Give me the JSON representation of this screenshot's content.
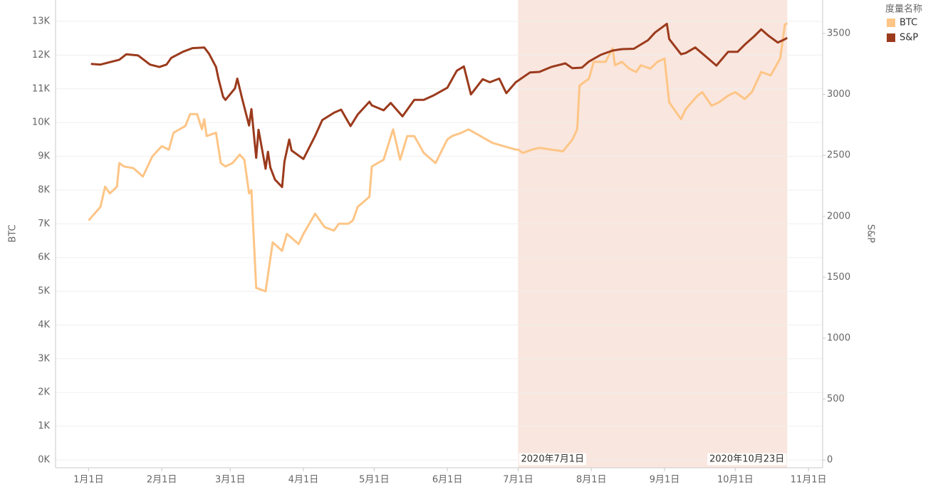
{
  "chart_data": {
    "type": "line",
    "legend_title": "度量名称",
    "legend_position": "right",
    "y_label": "BTC",
    "y2_label": "S&P",
    "grid": true,
    "xlim": [
      "2019-12-18",
      "2020-11-07"
    ],
    "xticks": [
      {
        "value": "2020-01-01",
        "label": "1月1日"
      },
      {
        "value": "2020-02-01",
        "label": "2月1日"
      },
      {
        "value": "2020-03-01",
        "label": "3月1日"
      },
      {
        "value": "2020-04-01",
        "label": "4月1日"
      },
      {
        "value": "2020-05-01",
        "label": "5月1日"
      },
      {
        "value": "2020-06-01",
        "label": "6月1日"
      },
      {
        "value": "2020-07-01",
        "label": "7月1日"
      },
      {
        "value": "2020-08-01",
        "label": "8月1日"
      },
      {
        "value": "2020-09-01",
        "label": "9月1日"
      },
      {
        "value": "2020-10-01",
        "label": "10月1日"
      },
      {
        "value": "2020-11-01",
        "label": "11月1日"
      }
    ],
    "ylim": [
      -232,
      13634
    ],
    "yticks": [
      {
        "value": 0,
        "label": "0K"
      },
      {
        "value": 1000,
        "label": "1K"
      },
      {
        "value": 2000,
        "label": "2K"
      },
      {
        "value": 3000,
        "label": "3K"
      },
      {
        "value": 4000,
        "label": "4K"
      },
      {
        "value": 5000,
        "label": "5K"
      },
      {
        "value": 6000,
        "label": "6K"
      },
      {
        "value": 7000,
        "label": "7K"
      },
      {
        "value": 8000,
        "label": "8K"
      },
      {
        "value": 9000,
        "label": "9K"
      },
      {
        "value": 10000,
        "label": "10K"
      },
      {
        "value": 11000,
        "label": "11K"
      },
      {
        "value": 12000,
        "label": "12K"
      },
      {
        "value": 13000,
        "label": "13K"
      }
    ],
    "y2lim": [
      -64,
      3775
    ],
    "y2ticks": [
      0,
      500,
      1000,
      1500,
      2000,
      2500,
      3000,
      3500
    ],
    "highlight": {
      "start": "2020-07-01",
      "end": "2020-10-23",
      "color": "#f9e6de",
      "start_label": "2020年7月1日",
      "end_label": "2020年10月23日"
    },
    "series": [
      {
        "name": "BTC",
        "color": "#fdc586",
        "axis": "y",
        "x": [
          "2020-01-01",
          "2020-01-06",
          "2020-01-08",
          "2020-01-10",
          "2020-01-13",
          "2020-01-14",
          "2020-01-16",
          "2020-01-20",
          "2020-01-24",
          "2020-01-28",
          "2020-02-01",
          "2020-02-04",
          "2020-02-06",
          "2020-02-11",
          "2020-02-13",
          "2020-02-16",
          "2020-02-18",
          "2020-02-19",
          "2020-02-20",
          "2020-02-24",
          "2020-02-26",
          "2020-02-28",
          "2020-03-02",
          "2020-03-05",
          "2020-03-07",
          "2020-03-09",
          "2020-03-10",
          "2020-03-12",
          "2020-03-16",
          "2020-03-19",
          "2020-03-23",
          "2020-03-25",
          "2020-03-30",
          "2020-04-01",
          "2020-04-06",
          "2020-04-10",
          "2020-04-14",
          "2020-04-16",
          "2020-04-20",
          "2020-04-22",
          "2020-04-24",
          "2020-04-29",
          "2020-04-30",
          "2020-05-05",
          "2020-05-09",
          "2020-05-12",
          "2020-05-15",
          "2020-05-18",
          "2020-05-22",
          "2020-05-27",
          "2020-06-01",
          "2020-06-03",
          "2020-06-07",
          "2020-06-10",
          "2020-06-15",
          "2020-06-20",
          "2020-06-25",
          "2020-06-30",
          "2020-07-01",
          "2020-07-03",
          "2020-07-07",
          "2020-07-10",
          "2020-07-15",
          "2020-07-20",
          "2020-07-24",
          "2020-07-26",
          "2020-07-27",
          "2020-07-31",
          "2020-08-02",
          "2020-08-07",
          "2020-08-10",
          "2020-08-11",
          "2020-08-14",
          "2020-08-17",
          "2020-08-20",
          "2020-08-22",
          "2020-08-26",
          "2020-08-29",
          "2020-09-01",
          "2020-09-03",
          "2020-09-08",
          "2020-09-10",
          "2020-09-15",
          "2020-09-17",
          "2020-09-21",
          "2020-09-24",
          "2020-09-28",
          "2020-10-01",
          "2020-10-05",
          "2020-10-08",
          "2020-10-12",
          "2020-10-16",
          "2020-10-20",
          "2020-10-22",
          "2020-10-23"
        ],
        "values": [
          7100,
          7500,
          8100,
          7900,
          8100,
          8800,
          8700,
          8650,
          8400,
          9000,
          9300,
          9200,
          9700,
          9900,
          10250,
          10250,
          9800,
          10100,
          9600,
          9700,
          8800,
          8700,
          8800,
          9050,
          8900,
          7900,
          8000,
          5100,
          5000,
          6450,
          6200,
          6700,
          6400,
          6700,
          7300,
          6900,
          6800,
          7000,
          7000,
          7100,
          7500,
          7800,
          8700,
          8900,
          9800,
          8900,
          9600,
          9600,
          9100,
          8800,
          9500,
          9600,
          9700,
          9800,
          9600,
          9400,
          9300,
          9200,
          9200,
          9100,
          9200,
          9250,
          9200,
          9150,
          9500,
          9800,
          11100,
          11300,
          11800,
          11800,
          12200,
          11700,
          11800,
          11600,
          11500,
          11700,
          11600,
          11800,
          11900,
          10600,
          10100,
          10400,
          10800,
          10900,
          10500,
          10600,
          10800,
          10900,
          10700,
          10900,
          11500,
          11400,
          11900,
          12900,
          12950
        ]
      },
      {
        "name": "S&P",
        "color": "#9b3a1c",
        "axis": "y2",
        "x": [
          "2020-01-02",
          "2020-01-06",
          "2020-01-10",
          "2020-01-14",
          "2020-01-17",
          "2020-01-22",
          "2020-01-27",
          "2020-01-31",
          "2020-02-03",
          "2020-02-05",
          "2020-02-10",
          "2020-02-14",
          "2020-02-19",
          "2020-02-21",
          "2020-02-24",
          "2020-02-25",
          "2020-02-27",
          "2020-02-28",
          "2020-03-03",
          "2020-03-04",
          "2020-03-06",
          "2020-03-09",
          "2020-03-10",
          "2020-03-12",
          "2020-03-13",
          "2020-03-16",
          "2020-03-17",
          "2020-03-18",
          "2020-03-20",
          "2020-03-23",
          "2020-03-24",
          "2020-03-26",
          "2020-03-27",
          "2020-04-01",
          "2020-04-06",
          "2020-04-09",
          "2020-04-14",
          "2020-04-17",
          "2020-04-21",
          "2020-04-24",
          "2020-04-29",
          "2020-04-30",
          "2020-05-05",
          "2020-05-08",
          "2020-05-13",
          "2020-05-18",
          "2020-05-22",
          "2020-05-26",
          "2020-06-01",
          "2020-06-05",
          "2020-06-08",
          "2020-06-11",
          "2020-06-16",
          "2020-06-19",
          "2020-06-23",
          "2020-06-26",
          "2020-06-30",
          "2020-07-06",
          "2020-07-10",
          "2020-07-15",
          "2020-07-21",
          "2020-07-24",
          "2020-07-28",
          "2020-07-31",
          "2020-08-05",
          "2020-08-10",
          "2020-08-14",
          "2020-08-19",
          "2020-08-25",
          "2020-08-28",
          "2020-09-02",
          "2020-09-03",
          "2020-09-08",
          "2020-09-10",
          "2020-09-14",
          "2020-09-18",
          "2020-09-23",
          "2020-09-28",
          "2020-10-02",
          "2020-10-05",
          "2020-10-09",
          "2020-10-12",
          "2020-10-15",
          "2020-10-19",
          "2020-10-22",
          "2020-10-23"
        ],
        "values": [
          3250,
          3245,
          3265,
          3285,
          3330,
          3320,
          3245,
          3225,
          3245,
          3300,
          3350,
          3380,
          3385,
          3335,
          3225,
          3130,
          2980,
          2955,
          3050,
          3130,
          2970,
          2745,
          2880,
          2480,
          2710,
          2390,
          2530,
          2400,
          2300,
          2240,
          2450,
          2630,
          2540,
          2470,
          2660,
          2790,
          2850,
          2875,
          2740,
          2835,
          2940,
          2910,
          2870,
          2930,
          2820,
          2955,
          2955,
          2990,
          3055,
          3195,
          3230,
          3000,
          3125,
          3100,
          3130,
          3010,
          3100,
          3180,
          3185,
          3225,
          3255,
          3215,
          3220,
          3270,
          3325,
          3360,
          3372,
          3375,
          3445,
          3508,
          3580,
          3455,
          3330,
          3340,
          3385,
          3320,
          3237,
          3350,
          3350,
          3408,
          3477,
          3534,
          3483,
          3426,
          3453,
          3465
        ]
      }
    ]
  }
}
